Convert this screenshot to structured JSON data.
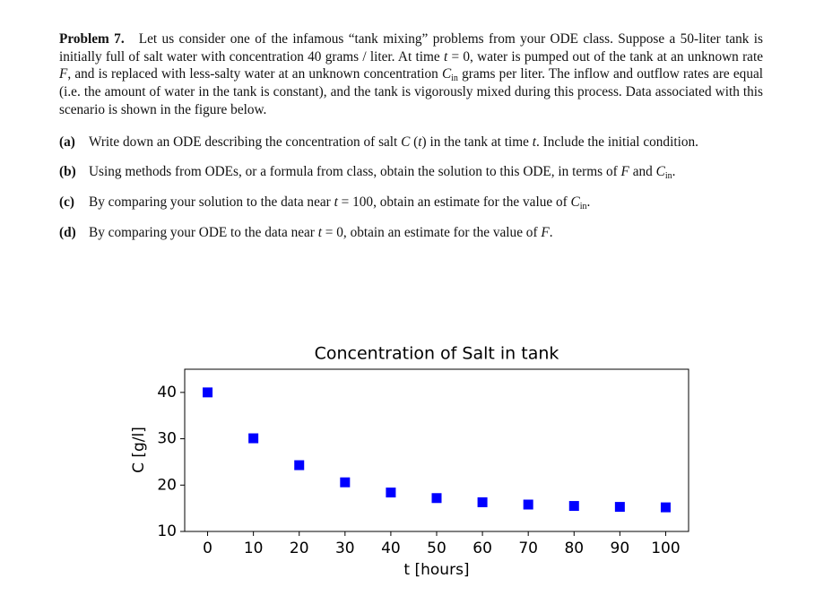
{
  "problem": {
    "label": "Problem 7.",
    "intro": [
      "Let us consider one of the infamous “tank mixing” problems from your ODE class. Suppose a 50-liter tank is initially full of salt water with concentration 40 grams / liter. At time ",
      "t",
      " = 0",
      ", water is pumped out of the tank at an unknown rate ",
      "F",
      ", and is replaced with less-salty water at an unknown concentration ",
      "C",
      "in",
      " grams per liter. The inflow and outflow rates are equal (i.e. the amount of water in the tank is constant), and the tank is vigorously mixed during this process. Data associated with this scenario is shown in the figure below."
    ],
    "parts": [
      {
        "label": "(a)",
        "text": [
          "Write down an ODE describing the concentration of salt ",
          "C",
          " (",
          "t",
          ")",
          " in the tank at time ",
          "t",
          ". Include the initial condition."
        ]
      },
      {
        "label": "(b)",
        "text": [
          "Using methods from ODEs, or a formula from class, obtain the solution to this ODE, in terms of ",
          "F",
          " and ",
          "C",
          "in",
          "."
        ]
      },
      {
        "label": "(c)",
        "text": [
          "By comparing your solution to the data near ",
          "t",
          " = 100",
          ", obtain an estimate for the value of ",
          "C",
          "in",
          "."
        ]
      },
      {
        "label": "(d)",
        "text": [
          "By comparing your ODE to the data near ",
          "t",
          " = 0",
          ", obtain an estimate for the value of ",
          "F",
          "."
        ]
      }
    ]
  },
  "chart_data": {
    "type": "scatter",
    "title": "Concentration of Salt in tank",
    "x_label": "t [hours]",
    "y_label": "C [g/l]",
    "x": [
      0,
      10,
      20,
      30,
      40,
      50,
      60,
      70,
      80,
      90,
      100
    ],
    "values": [
      40,
      30.1,
      24.3,
      20.6,
      18.4,
      17.2,
      16.3,
      15.8,
      15.5,
      15.3,
      15.2
    ],
    "color": "#0000ff",
    "marker": "square",
    "xlim": [
      -5,
      105
    ],
    "xticks": [
      0,
      10,
      20,
      30,
      40,
      50,
      60,
      70,
      80,
      90,
      100
    ],
    "ylim": [
      10,
      45
    ],
    "yticks": [
      10,
      20,
      30,
      40
    ]
  }
}
